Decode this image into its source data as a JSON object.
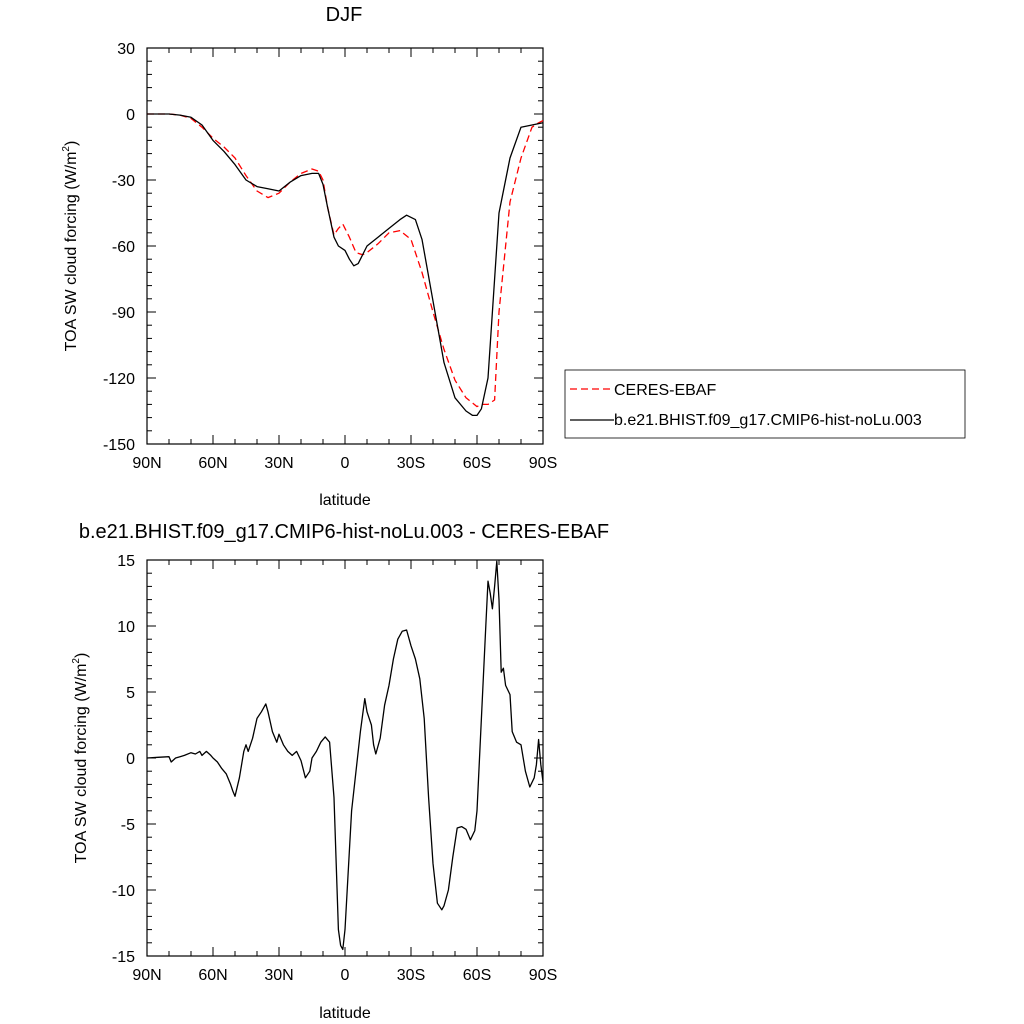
{
  "chart_data": [
    {
      "type": "line",
      "title": "DJF",
      "xlabel": "latitude",
      "ylabel": "TOA SW cloud forcing (W/m",
      "ylabel_sup": "2",
      "ylabel_close": ")",
      "xlim": [
        90,
        -90
      ],
      "ylim": [
        -150,
        30
      ],
      "xticks": [
        90,
        60,
        30,
        0,
        -30,
        -60,
        -90
      ],
      "xtick_labels": [
        "90N",
        "60N",
        "30N",
        "0",
        "30S",
        "60S",
        "90S"
      ],
      "yticks": [
        30,
        0,
        -30,
        -60,
        -90,
        -120,
        -150
      ],
      "ytick_labels": [
        "30",
        "0",
        "-30",
        "-60",
        "-90",
        "-120",
        "-150"
      ],
      "legend_position": "right",
      "series": [
        {
          "name": "CERES-EBAF",
          "color": "#ff0000",
          "style": "dashed",
          "x": [
            90,
            85,
            80,
            75,
            70,
            65,
            60,
            55,
            50,
            45,
            40,
            35,
            30,
            25,
            20,
            15,
            12,
            10,
            8,
            5,
            3,
            1,
            0,
            -2,
            -5,
            -8,
            -10,
            -15,
            -20,
            -25,
            -30,
            -35,
            -40,
            -45,
            -50,
            -55,
            -60,
            -62,
            -65,
            -68,
            -70,
            -75,
            -80,
            -85,
            -88,
            -90
          ],
          "y": [
            0,
            0,
            0,
            -0.5,
            -2,
            -6,
            -11,
            -15,
            -20,
            -28,
            -35,
            -38,
            -36,
            -31,
            -27,
            -25,
            -26,
            -30,
            -42,
            -55,
            -52,
            -50,
            -52,
            -56,
            -63,
            -64,
            -63,
            -59,
            -54,
            -53,
            -57,
            -72,
            -90,
            -107,
            -121,
            -129,
            -133,
            -132,
            -132,
            -130,
            -90,
            -40,
            -20,
            -6,
            -4,
            -3
          ]
        },
        {
          "name": "b.e21.BHIST.f09_g17.CMIP6-hist-noLu.003",
          "color": "#000000",
          "style": "solid",
          "x": [
            90,
            85,
            80,
            75,
            70,
            65,
            60,
            55,
            50,
            45,
            40,
            35,
            30,
            25,
            20,
            15,
            12,
            10,
            8,
            5,
            3,
            0,
            -2,
            -4,
            -6,
            -8,
            -10,
            -15,
            -20,
            -25,
            -28,
            -32,
            -35,
            -40,
            -45,
            -50,
            -55,
            -58,
            -60,
            -62,
            -65,
            -68,
            -70,
            -75,
            -80,
            -85,
            -90
          ],
          "y": [
            0,
            0,
            0,
            -0.5,
            -1.5,
            -5,
            -12,
            -17,
            -23,
            -30,
            -33,
            -34,
            -35,
            -31,
            -28,
            -27,
            -27,
            -32,
            -42,
            -56,
            -60,
            -62,
            -66,
            -69,
            -68,
            -64,
            -60,
            -56,
            -52,
            -48,
            -46,
            -48,
            -57,
            -85,
            -113,
            -129,
            -135,
            -137,
            -137,
            -134,
            -120,
            -75,
            -45,
            -20,
            -6,
            -5,
            -4
          ]
        }
      ]
    },
    {
      "type": "line",
      "title": "b.e21.BHIST.f09_g17.CMIP6-hist-noLu.003 - CERES-EBAF",
      "xlabel": "latitude",
      "ylabel": "TOA SW cloud forcing (W/m",
      "ylabel_sup": "2",
      "ylabel_close": ")",
      "xlim": [
        90,
        -90
      ],
      "ylim": [
        -15,
        15
      ],
      "xticks": [
        90,
        60,
        30,
        0,
        -30,
        -60,
        -90
      ],
      "xtick_labels": [
        "90N",
        "60N",
        "30N",
        "0",
        "30S",
        "60S",
        "90S"
      ],
      "yticks": [
        15,
        10,
        5,
        0,
        -5,
        -10,
        -15
      ],
      "ytick_labels": [
        "15",
        "10",
        "5",
        "0",
        "-5",
        "-10",
        "-15"
      ],
      "series": [
        {
          "color": "#000000",
          "style": "solid",
          "x": [
            90,
            85,
            80,
            79,
            77,
            75,
            73,
            70,
            68,
            66,
            65,
            63,
            61,
            60,
            58,
            56,
            54,
            52,
            51,
            50,
            48,
            46,
            45,
            44,
            42,
            40,
            38,
            36,
            35,
            33,
            31,
            30,
            28,
            26,
            24,
            22,
            20,
            18,
            16,
            15,
            13,
            11,
            9,
            7,
            5,
            4,
            3,
            2,
            1,
            0,
            -1,
            -2,
            -3,
            -5,
            -7,
            -9,
            -10,
            -11,
            -12,
            -13,
            -14,
            -16,
            -18,
            -20,
            -22,
            -24,
            -26,
            -28,
            -30,
            -32,
            -34,
            -36,
            -38,
            -40,
            -42,
            -44,
            -45,
            -47,
            -49,
            -51,
            -53,
            -55,
            -57,
            -59,
            -60,
            -62,
            -64,
            -65,
            -66,
            -67,
            -68,
            -69,
            -70,
            -71,
            -72,
            -73,
            -75,
            -76,
            -78,
            -80,
            -82,
            -84,
            -86,
            -87,
            -88,
            -89,
            -90
          ],
          "y": [
            0,
            0.05,
            0.1,
            -0.3,
            0,
            0.1,
            0.2,
            0.4,
            0.3,
            0.5,
            0.2,
            0.5,
            0.2,
            0,
            -0.3,
            -0.8,
            -1.2,
            -2,
            -2.5,
            -2.9,
            -1.5,
            0.5,
            1,
            0.5,
            1.5,
            3,
            3.5,
            4.1,
            3.5,
            2,
            1.2,
            1.8,
            1,
            0.5,
            0.2,
            0.5,
            -0.2,
            -1.5,
            -1,
            0,
            0.5,
            1.2,
            1.6,
            1.2,
            -3,
            -8,
            -13,
            -14.2,
            -14.5,
            -13,
            -10,
            -7,
            -4,
            -1,
            2,
            4.5,
            3.5,
            3,
            2.5,
            1,
            0.3,
            1.5,
            4,
            5.5,
            7.5,
            9,
            9.6,
            9.7,
            8.5,
            7.5,
            6,
            3,
            -3,
            -8,
            -11,
            -11.5,
            -11.2,
            -10,
            -7.5,
            -5.3,
            -5.2,
            -5.4,
            -6.2,
            -5.5,
            -4,
            3,
            10,
            13.4,
            12.5,
            11.3,
            13,
            14.9,
            12,
            6.5,
            6.8,
            5.5,
            4.8,
            2,
            1.2,
            1,
            -1,
            -2.2,
            -1.5,
            -0.5,
            1.4,
            -0.5,
            -1.8
          ]
        }
      ]
    }
  ]
}
